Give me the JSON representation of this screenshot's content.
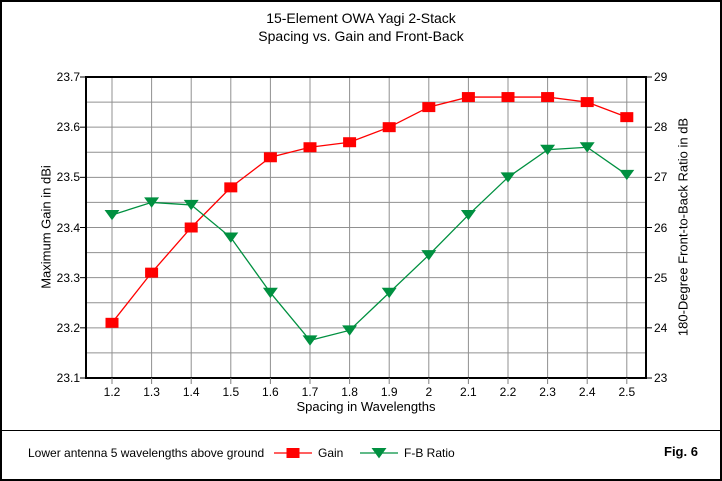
{
  "note": "Lower antenna 5 wavelengths above ground",
  "figure_label": "Fig. 6",
  "colors": {
    "background": "#ffffff",
    "border": "#000000",
    "grid": "#909090",
    "axis": "#000000",
    "bottom_ticks": "#808080",
    "gain": "#ff0000",
    "fb_ratio": "#009040"
  },
  "chart_data": {
    "type": "line",
    "title": "15-Element OWA Yagi 2-Stack",
    "subtitle": "Spacing vs. Gain and Front-Back",
    "xlabel": "Spacing in Wavelengths",
    "ylabel_left": "Maximum Gain in dBi",
    "ylabel_right": "180-Degree Front-to-Back Ratio in dB",
    "x": [
      1.2,
      1.3,
      1.4,
      1.5,
      1.6,
      1.7,
      1.8,
      1.9,
      2.0,
      2.1,
      2.2,
      2.3,
      2.4,
      2.5
    ],
    "x_tick_labels": [
      "1.2",
      "1.3",
      "1.4",
      "1.5",
      "1.6",
      "1.7",
      "1.8",
      "1.9",
      "2",
      "2.1",
      "2.2",
      "2.3",
      "2.4",
      "2.5"
    ],
    "ylim_left": [
      23.1,
      23.7
    ],
    "ylim_right": [
      23,
      29
    ],
    "yticks_left": [
      {
        "v": 23.7,
        "label": "23.7"
      },
      {
        "v": 23.6,
        "label": "23.6"
      },
      {
        "v": 23.5,
        "label": "23.5"
      },
      {
        "v": 23.4,
        "label": "23.4"
      },
      {
        "v": 23.3,
        "label": "23.3"
      },
      {
        "v": 23.2,
        "label": "23.2"
      },
      {
        "v": 23.1,
        "label": "23.1"
      }
    ],
    "yticks_right": [
      {
        "v": 29,
        "label": "29"
      },
      {
        "v": 28,
        "label": "28"
      },
      {
        "v": 27,
        "label": "27"
      },
      {
        "v": 26,
        "label": "26"
      },
      {
        "v": 25,
        "label": "25"
      },
      {
        "v": 24,
        "label": "24"
      },
      {
        "v": 23,
        "label": "23"
      }
    ],
    "y_minor_divisions": 12,
    "grid": true,
    "legend_position": "bottom",
    "series": [
      {
        "name": "Gain",
        "axis": "left",
        "marker": "square",
        "color": "#ff0000",
        "values": [
          23.21,
          23.31,
          23.4,
          23.48,
          23.54,
          23.56,
          23.57,
          23.6,
          23.64,
          23.66,
          23.66,
          23.66,
          23.65,
          23.62
        ]
      },
      {
        "name": "F-B Ratio",
        "axis": "right",
        "marker": "triangle-down",
        "color": "#009040",
        "values": [
          26.25,
          26.5,
          26.45,
          25.8,
          24.7,
          23.75,
          23.95,
          24.7,
          25.45,
          26.25,
          27.0,
          27.55,
          27.6,
          27.05
        ]
      }
    ]
  }
}
